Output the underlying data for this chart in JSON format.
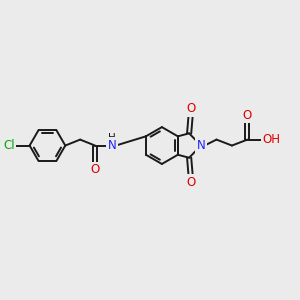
{
  "background_color": "#ebebeb",
  "bond_color": "#1a1a1a",
  "atom_colors": {
    "N": "#2020ff",
    "O": "#dd0000",
    "Cl": "#00aa00",
    "C": "#1a1a1a"
  },
  "figsize": [
    3.0,
    3.0
  ],
  "dpi": 100,
  "lw": 1.4,
  "fs": 8.5
}
